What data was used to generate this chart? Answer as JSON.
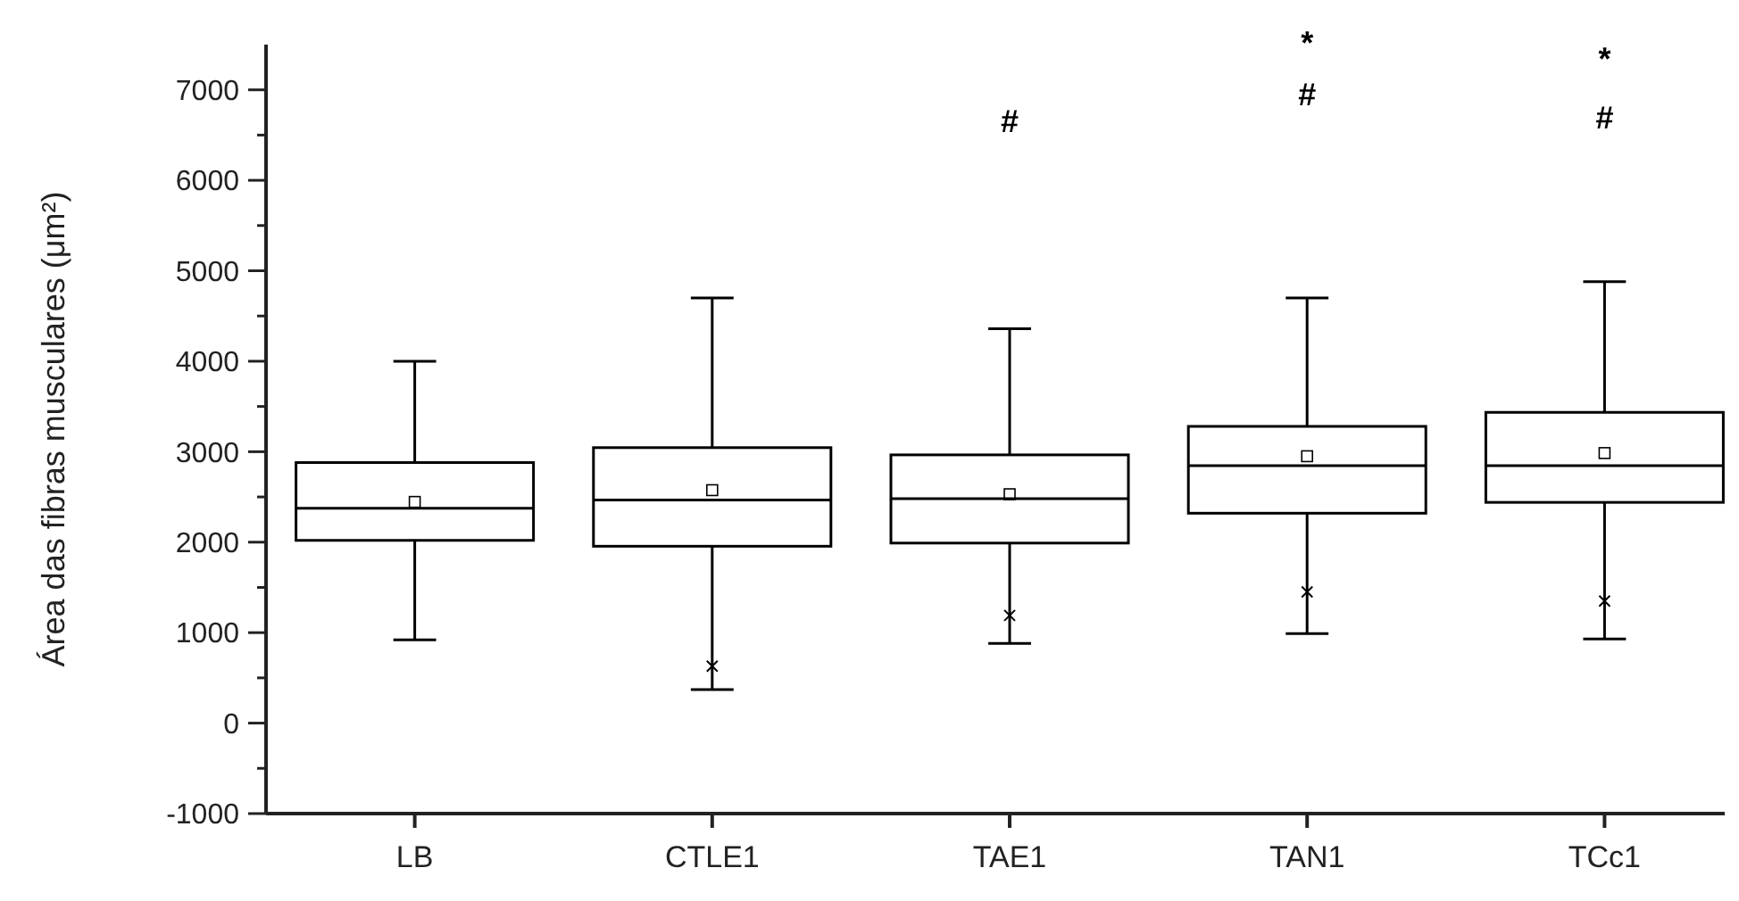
{
  "chart_data": {
    "type": "box",
    "ylabel": "Área das fibras musculares  (μm²)",
    "categories": [
      "LB",
      "CTLE1",
      "TAE1",
      "TAN1",
      "TCc1"
    ],
    "boxes": [
      {
        "low": 920,
        "q1": 2020,
        "median": 2375,
        "q3": 2880,
        "high": 4000,
        "mean": 2445
      },
      {
        "low": 370,
        "q1": 1955,
        "median": 2465,
        "q3": 3045,
        "high": 4700,
        "mean": 2575,
        "outliers": [
          630
        ]
      },
      {
        "low": 880,
        "q1": 1990,
        "median": 2480,
        "q3": 2965,
        "high": 4360,
        "mean": 2530,
        "outliers": [
          1190
        ]
      },
      {
        "low": 990,
        "q1": 2320,
        "median": 2845,
        "q3": 3280,
        "high": 4700,
        "mean": 2950,
        "outliers": [
          1450
        ]
      },
      {
        "low": 930,
        "q1": 2440,
        "median": 2845,
        "q3": 3435,
        "high": 4880,
        "mean": 2985,
        "outliers": [
          1350
        ]
      }
    ],
    "color": "#000000",
    "ylim": [
      -1000,
      7500
    ],
    "yticks": [
      -1000,
      {
        "value": -500,
        "label": null
      },
      0,
      {
        "value": 500,
        "label": null
      },
      1000,
      {
        "value": 1500,
        "label": null
      },
      2000,
      {
        "value": 2500,
        "label": null
      },
      3000,
      {
        "value": 3500,
        "label": null
      },
      4000,
      {
        "value": 4500,
        "label": null
      },
      5000,
      {
        "value": 5500,
        "label": null
      },
      6000,
      {
        "value": 6500,
        "label": null
      },
      7000
    ],
    "annotations": [
      "#",
      "*",
      "#",
      "*",
      "#"
    ]
  }
}
